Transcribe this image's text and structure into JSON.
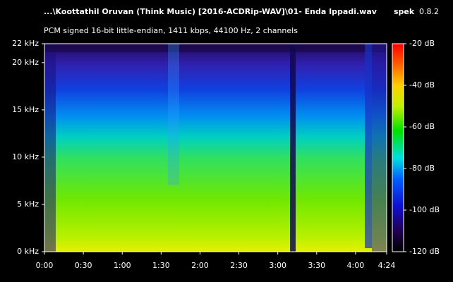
{
  "chart_data": {
    "type": "spectrogram",
    "title": "...\\Koottathil Oruvan (Think Music) [2016-ACDRip-WAV]\\01- Enda Ippadi.wav",
    "app_name": "spek",
    "app_version": "0.8.2",
    "subtitle": "PCM signed 16-bit little-endian, 1411 kbps, 44100 Hz, 2 channels",
    "xlim": [
      0,
      264
    ],
    "xticks": [
      {
        "value": 0,
        "label": "0:00"
      },
      {
        "value": 30,
        "label": "0:30"
      },
      {
        "value": 60,
        "label": "1:00"
      },
      {
        "value": 90,
        "label": "1:30"
      },
      {
        "value": 120,
        "label": "2:00"
      },
      {
        "value": 150,
        "label": "2:30"
      },
      {
        "value": 180,
        "label": "3:00"
      },
      {
        "value": 210,
        "label": "3:30"
      },
      {
        "value": 240,
        "label": "4:00"
      },
      {
        "value": 264,
        "label": "4:24"
      }
    ],
    "ylim": [
      0,
      22
    ],
    "yticks": [
      {
        "value": 0,
        "label": "0 kHz"
      },
      {
        "value": 5,
        "label": "5 kHz"
      },
      {
        "value": 10,
        "label": "10 kHz"
      },
      {
        "value": 15,
        "label": "15 kHz"
      },
      {
        "value": 20,
        "label": "20 kHz"
      },
      {
        "value": 22,
        "label": "22 kHz"
      }
    ],
    "clim": [
      -120,
      -20
    ],
    "cticks": [
      {
        "value": -20,
        "label": "-20 dB"
      },
      {
        "value": -40,
        "label": "-40 dB"
      },
      {
        "value": -60,
        "label": "-60 dB"
      },
      {
        "value": -80,
        "label": "-80 dB"
      },
      {
        "value": -100,
        "label": "-100 dB"
      },
      {
        "value": -120,
        "label": "-120 dB"
      }
    ]
  }
}
